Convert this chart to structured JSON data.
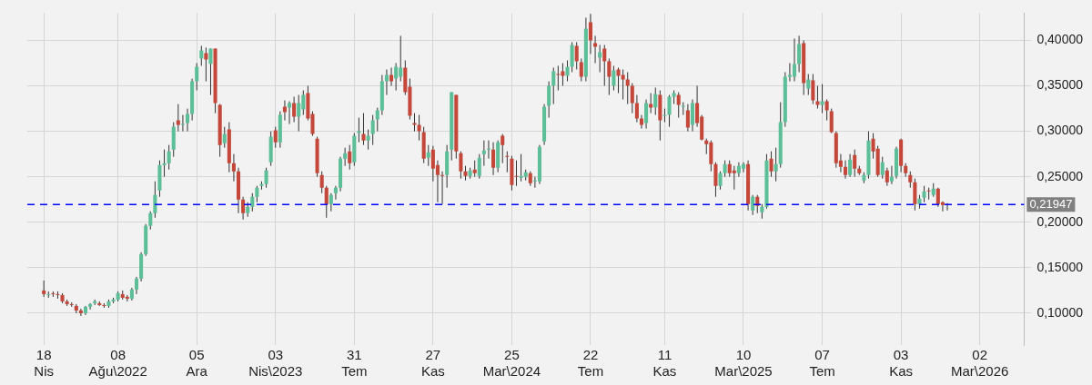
{
  "chart_data": {
    "type": "candlestick",
    "grid": true,
    "xlim": [
      "2022-03-24",
      "2026-05-08"
    ],
    "ylim": [
      0.065,
      0.43
    ],
    "xticks": [
      {
        "value": "2022-04-18",
        "label": "18\nNis"
      },
      {
        "value": "2022-08-08",
        "label": "08\nAğu\\2022"
      },
      {
        "value": "2022-12-05",
        "label": "05\nAra"
      },
      {
        "value": "2023-04-03",
        "label": "03\nNis\\2023"
      },
      {
        "value": "2023-07-31",
        "label": "31\nTem"
      },
      {
        "value": "2023-11-27",
        "label": "27\nKas"
      },
      {
        "value": "2024-03-25",
        "label": "25\nMar\\2024"
      },
      {
        "value": "2024-07-22",
        "label": "22\nTem"
      },
      {
        "value": "2024-11-11",
        "label": "11\nKas"
      },
      {
        "value": "2025-03-10",
        "label": "10\nMar\\2025"
      },
      {
        "value": "2025-07-07",
        "label": "07\nTem"
      },
      {
        "value": "2025-11-03",
        "label": "03\nKas"
      },
      {
        "value": "2026-03-02",
        "label": "02\nMar\\2026"
      }
    ],
    "yticks": [
      {
        "value": 0.1,
        "label": "0,10000"
      },
      {
        "value": 0.15,
        "label": "0,15000"
      },
      {
        "value": 0.2,
        "label": "0,20000"
      },
      {
        "value": 0.25,
        "label": "0,25000"
      },
      {
        "value": 0.3,
        "label": "0,30000"
      },
      {
        "value": 0.35,
        "label": "0,35000"
      },
      {
        "value": 0.4,
        "label": "0,40000"
      }
    ],
    "ref_lines": [
      {
        "axis": "y",
        "value": 0.21947,
        "label": "0,21947",
        "color": "#0000ff",
        "line_style": "dashed"
      }
    ],
    "x": [
      "2022-04-18",
      "2022-04-25",
      "2022-05-02",
      "2022-05-09",
      "2022-05-16",
      "2022-05-23",
      "2022-05-30",
      "2022-06-06",
      "2022-06-13",
      "2022-06-20",
      "2022-06-27",
      "2022-07-04",
      "2022-07-11",
      "2022-07-18",
      "2022-07-25",
      "2022-08-01",
      "2022-08-08",
      "2022-08-15",
      "2022-08-22",
      "2022-08-29",
      "2022-09-05",
      "2022-09-12",
      "2022-09-19",
      "2022-09-26",
      "2022-10-03",
      "2022-10-10",
      "2022-10-17",
      "2022-10-24",
      "2022-10-31",
      "2022-11-07",
      "2022-11-14",
      "2022-11-21",
      "2022-11-28",
      "2022-12-05",
      "2022-12-12",
      "2022-12-19",
      "2022-12-26",
      "2023-01-02",
      "2023-01-09",
      "2023-01-16",
      "2023-01-23",
      "2023-01-30",
      "2023-02-06",
      "2023-02-13",
      "2023-02-20",
      "2023-02-27",
      "2023-03-06",
      "2023-03-13",
      "2023-03-20",
      "2023-03-27",
      "2023-04-03",
      "2023-04-10",
      "2023-04-17",
      "2023-04-24",
      "2023-05-01",
      "2023-05-08",
      "2023-05-15",
      "2023-05-22",
      "2023-05-29",
      "2023-06-05",
      "2023-06-12",
      "2023-06-19",
      "2023-06-26",
      "2023-07-03",
      "2023-07-10",
      "2023-07-17",
      "2023-07-24",
      "2023-07-31",
      "2023-08-07",
      "2023-08-14",
      "2023-08-21",
      "2023-08-28",
      "2023-09-04",
      "2023-09-11",
      "2023-09-18",
      "2023-09-25",
      "2023-10-02",
      "2023-10-09",
      "2023-10-16",
      "2023-10-23",
      "2023-10-30",
      "2023-11-06",
      "2023-11-13",
      "2023-11-20",
      "2023-11-27",
      "2023-12-04",
      "2023-12-11",
      "2023-12-18",
      "2023-12-25",
      "2024-01-01",
      "2024-01-08",
      "2024-01-15",
      "2024-01-22",
      "2024-01-29",
      "2024-02-05",
      "2024-02-12",
      "2024-02-19",
      "2024-02-26",
      "2024-03-04",
      "2024-03-11",
      "2024-03-18",
      "2024-03-25",
      "2024-04-01",
      "2024-04-08",
      "2024-04-15",
      "2024-04-22",
      "2024-04-29",
      "2024-05-06",
      "2024-05-13",
      "2024-05-20",
      "2024-05-27",
      "2024-06-03",
      "2024-06-10",
      "2024-06-17",
      "2024-06-24",
      "2024-07-01",
      "2024-07-08",
      "2024-07-15",
      "2024-07-22",
      "2024-07-29",
      "2024-08-05",
      "2024-08-12",
      "2024-08-19",
      "2024-08-26",
      "2024-09-02",
      "2024-09-09",
      "2024-09-16",
      "2024-09-23",
      "2024-09-30",
      "2024-10-07",
      "2024-10-14",
      "2024-10-21",
      "2024-10-28",
      "2024-11-04",
      "2024-11-11",
      "2024-11-18",
      "2024-11-25",
      "2024-12-02",
      "2024-12-09",
      "2024-12-16",
      "2024-12-23",
      "2024-12-30",
      "2025-01-06",
      "2025-01-13",
      "2025-01-20",
      "2025-01-27",
      "2025-02-03",
      "2025-02-10",
      "2025-02-17",
      "2025-02-24",
      "2025-03-03",
      "2025-03-10",
      "2025-03-17",
      "2025-03-24",
      "2025-03-31",
      "2025-04-07",
      "2025-04-14",
      "2025-04-21",
      "2025-04-28",
      "2025-05-05",
      "2025-05-12",
      "2025-05-19",
      "2025-05-26",
      "2025-06-02",
      "2025-06-09",
      "2025-06-16",
      "2025-06-23",
      "2025-06-30",
      "2025-07-07",
      "2025-07-14",
      "2025-07-21",
      "2025-07-28",
      "2025-08-04",
      "2025-08-11",
      "2025-08-18",
      "2025-08-25",
      "2025-09-01",
      "2025-09-08",
      "2025-09-15",
      "2025-09-22",
      "2025-09-29",
      "2025-10-06",
      "2025-10-13",
      "2025-10-20",
      "2025-10-27",
      "2025-11-03",
      "2025-11-10",
      "2025-11-17",
      "2025-11-24",
      "2025-12-01",
      "2025-12-08",
      "2025-12-15",
      "2025-12-22",
      "2025-12-29",
      "2026-01-05",
      "2026-01-12"
    ],
    "ohlc": [
      [
        0.125,
        0.136,
        0.118,
        0.121
      ],
      [
        0.121,
        0.124,
        0.117,
        0.121
      ],
      [
        0.122,
        0.124,
        0.118,
        0.121
      ],
      [
        0.121,
        0.124,
        0.116,
        0.12
      ],
      [
        0.12,
        0.122,
        0.111,
        0.113
      ],
      [
        0.113,
        0.115,
        0.108,
        0.11
      ],
      [
        0.11,
        0.112,
        0.107,
        0.109
      ],
      [
        0.108,
        0.11,
        0.1,
        0.103
      ],
      [
        0.103,
        0.105,
        0.097,
        0.1
      ],
      [
        0.1,
        0.108,
        0.098,
        0.107
      ],
      [
        0.107,
        0.111,
        0.104,
        0.11
      ],
      [
        0.111,
        0.115,
        0.109,
        0.113
      ],
      [
        0.111,
        0.113,
        0.108,
        0.109
      ],
      [
        0.109,
        0.111,
        0.106,
        0.108
      ],
      [
        0.108,
        0.115,
        0.106,
        0.113
      ],
      [
        0.113,
        0.117,
        0.111,
        0.115
      ],
      [
        0.115,
        0.124,
        0.113,
        0.122
      ],
      [
        0.121,
        0.125,
        0.115,
        0.117
      ],
      [
        0.118,
        0.12,
        0.113,
        0.116
      ],
      [
        0.116,
        0.128,
        0.114,
        0.126
      ],
      [
        0.126,
        0.14,
        0.121,
        0.138
      ],
      [
        0.138,
        0.167,
        0.135,
        0.165
      ],
      [
        0.165,
        0.198,
        0.163,
        0.196
      ],
      [
        0.196,
        0.212,
        0.192,
        0.21
      ],
      [
        0.21,
        0.245,
        0.205,
        0.23
      ],
      [
        0.235,
        0.268,
        0.228,
        0.263
      ],
      [
        0.263,
        0.28,
        0.25,
        0.265
      ],
      [
        0.265,
        0.285,
        0.258,
        0.278
      ],
      [
        0.28,
        0.31,
        0.272,
        0.305
      ],
      [
        0.312,
        0.33,
        0.3,
        0.307
      ],
      [
        0.308,
        0.318,
        0.3,
        0.308
      ],
      [
        0.309,
        0.325,
        0.3,
        0.319
      ],
      [
        0.319,
        0.358,
        0.312,
        0.355
      ],
      [
        0.355,
        0.375,
        0.345,
        0.371
      ],
      [
        0.38,
        0.394,
        0.372,
        0.389
      ],
      [
        0.386,
        0.392,
        0.355,
        0.379
      ],
      [
        0.374,
        0.391,
        0.34,
        0.391
      ],
      [
        0.391,
        0.391,
        0.32,
        0.331
      ],
      [
        0.329,
        0.33,
        0.272,
        0.285
      ],
      [
        0.287,
        0.305,
        0.282,
        0.297
      ],
      [
        0.302,
        0.31,
        0.255,
        0.265
      ],
      [
        0.265,
        0.275,
        0.245,
        0.256
      ],
      [
        0.256,
        0.26,
        0.21,
        0.225
      ],
      [
        0.225,
        0.228,
        0.203,
        0.21
      ],
      [
        0.21,
        0.222,
        0.206,
        0.217
      ],
      [
        0.217,
        0.232,
        0.212,
        0.228
      ],
      [
        0.228,
        0.24,
        0.222,
        0.238
      ],
      [
        0.24,
        0.245,
        0.236,
        0.242
      ],
      [
        0.242,
        0.26,
        0.238,
        0.257
      ],
      [
        0.266,
        0.3,
        0.262,
        0.294
      ],
      [
        0.301,
        0.305,
        0.282,
        0.288
      ],
      [
        0.288,
        0.322,
        0.282,
        0.318
      ],
      [
        0.327,
        0.334,
        0.312,
        0.321
      ],
      [
        0.326,
        0.333,
        0.308,
        0.331
      ],
      [
        0.331,
        0.338,
        0.31,
        0.316
      ],
      [
        0.316,
        0.34,
        0.3,
        0.331
      ],
      [
        0.324,
        0.345,
        0.318,
        0.34
      ],
      [
        0.342,
        0.35,
        0.312,
        0.314
      ],
      [
        0.319,
        0.322,
        0.295,
        0.297
      ],
      [
        0.292,
        0.294,
        0.25,
        0.254
      ],
      [
        0.252,
        0.256,
        0.232,
        0.238
      ],
      [
        0.238,
        0.24,
        0.205,
        0.22
      ],
      [
        0.22,
        0.232,
        0.212,
        0.23
      ],
      [
        0.232,
        0.24,
        0.225,
        0.238
      ],
      [
        0.238,
        0.272,
        0.234,
        0.27
      ],
      [
        0.27,
        0.282,
        0.262,
        0.276
      ],
      [
        0.278,
        0.285,
        0.258,
        0.265
      ],
      [
        0.266,
        0.298,
        0.262,
        0.295
      ],
      [
        0.298,
        0.315,
        0.288,
        0.3
      ],
      [
        0.297,
        0.32,
        0.285,
        0.29
      ],
      [
        0.29,
        0.302,
        0.28,
        0.295
      ],
      [
        0.297,
        0.318,
        0.285,
        0.312
      ],
      [
        0.313,
        0.326,
        0.3,
        0.323
      ],
      [
        0.323,
        0.362,
        0.318,
        0.355
      ],
      [
        0.355,
        0.368,
        0.34,
        0.362
      ],
      [
        0.362,
        0.37,
        0.35,
        0.355
      ],
      [
        0.358,
        0.375,
        0.345,
        0.371
      ],
      [
        0.36,
        0.405,
        0.355,
        0.37
      ],
      [
        0.37,
        0.378,
        0.34,
        0.343
      ],
      [
        0.349,
        0.358,
        0.313,
        0.317
      ],
      [
        0.309,
        0.32,
        0.3,
        0.307
      ],
      [
        0.307,
        0.318,
        0.29,
        0.3
      ],
      [
        0.299,
        0.305,
        0.265,
        0.27
      ],
      [
        0.271,
        0.285,
        0.262,
        0.277
      ],
      [
        0.28,
        0.284,
        0.245,
        0.259
      ],
      [
        0.263,
        0.268,
        0.222,
        0.252
      ],
      [
        0.252,
        0.256,
        0.22,
        0.251
      ],
      [
        0.252,
        0.285,
        0.238,
        0.278
      ],
      [
        0.28,
        0.343,
        0.268,
        0.343
      ],
      [
        0.34,
        0.34,
        0.27,
        0.278
      ],
      [
        0.276,
        0.278,
        0.248,
        0.256
      ],
      [
        0.256,
        0.262,
        0.246,
        0.251
      ],
      [
        0.251,
        0.26,
        0.248,
        0.257
      ],
      [
        0.258,
        0.268,
        0.25,
        0.254
      ],
      [
        0.251,
        0.275,
        0.248,
        0.271
      ],
      [
        0.275,
        0.29,
        0.262,
        0.279
      ],
      [
        0.28,
        0.29,
        0.27,
        0.281
      ],
      [
        0.28,
        0.288,
        0.252,
        0.26
      ],
      [
        0.26,
        0.29,
        0.255,
        0.288
      ],
      [
        0.295,
        0.297,
        0.265,
        0.285
      ],
      [
        0.273,
        0.278,
        0.255,
        0.272
      ],
      [
        0.27,
        0.273,
        0.235,
        0.241
      ],
      [
        0.251,
        0.268,
        0.24,
        0.25
      ],
      [
        0.249,
        0.275,
        0.245,
        0.251
      ],
      [
        0.25,
        0.258,
        0.246,
        0.255
      ],
      [
        0.254,
        0.256,
        0.24,
        0.243
      ],
      [
        0.246,
        0.25,
        0.238,
        0.246
      ],
      [
        0.245,
        0.285,
        0.242,
        0.283
      ],
      [
        0.289,
        0.33,
        0.285,
        0.327
      ],
      [
        0.328,
        0.355,
        0.315,
        0.35
      ],
      [
        0.35,
        0.37,
        0.33,
        0.366
      ],
      [
        0.363,
        0.372,
        0.345,
        0.362
      ],
      [
        0.366,
        0.375,
        0.35,
        0.361
      ],
      [
        0.361,
        0.378,
        0.355,
        0.371
      ],
      [
        0.371,
        0.398,
        0.365,
        0.395
      ],
      [
        0.394,
        0.398,
        0.368,
        0.377
      ],
      [
        0.376,
        0.38,
        0.355,
        0.36
      ],
      [
        0.36,
        0.425,
        0.355,
        0.413
      ],
      [
        0.42,
        0.429,
        0.385,
        0.4
      ],
      [
        0.397,
        0.405,
        0.375,
        0.393
      ],
      [
        0.381,
        0.395,
        0.365,
        0.387
      ],
      [
        0.391,
        0.395,
        0.35,
        0.377
      ],
      [
        0.377,
        0.38,
        0.34,
        0.36
      ],
      [
        0.35,
        0.372,
        0.345,
        0.367
      ],
      [
        0.368,
        0.37,
        0.342,
        0.361
      ],
      [
        0.362,
        0.368,
        0.335,
        0.357
      ],
      [
        0.357,
        0.365,
        0.33,
        0.35
      ],
      [
        0.35,
        0.353,
        0.32,
        0.331
      ],
      [
        0.331,
        0.34,
        0.31,
        0.314
      ],
      [
        0.314,
        0.318,
        0.303,
        0.307
      ],
      [
        0.309,
        0.335,
        0.303,
        0.331
      ],
      [
        0.33,
        0.342,
        0.32,
        0.326
      ],
      [
        0.326,
        0.348,
        0.318,
        0.341
      ],
      [
        0.34,
        0.345,
        0.29,
        0.312
      ],
      [
        0.318,
        0.325,
        0.31,
        0.318
      ],
      [
        0.318,
        0.34,
        0.305,
        0.338
      ],
      [
        0.338,
        0.345,
        0.33,
        0.342
      ],
      [
        0.34,
        0.343,
        0.315,
        0.329
      ],
      [
        0.328,
        0.332,
        0.318,
        0.328
      ],
      [
        0.323,
        0.33,
        0.3,
        0.304
      ],
      [
        0.307,
        0.335,
        0.3,
        0.331
      ],
      [
        0.331,
        0.35,
        0.305,
        0.309
      ],
      [
        0.316,
        0.318,
        0.29,
        0.291
      ],
      [
        0.29,
        0.292,
        0.275,
        0.286
      ],
      [
        0.288,
        0.29,
        0.256,
        0.264
      ],
      [
        0.264,
        0.266,
        0.228,
        0.24
      ],
      [
        0.24,
        0.256,
        0.236,
        0.254
      ],
      [
        0.254,
        0.268,
        0.25,
        0.264
      ],
      [
        0.264,
        0.268,
        0.25,
        0.254
      ],
      [
        0.257,
        0.262,
        0.236,
        0.254
      ],
      [
        0.254,
        0.266,
        0.25,
        0.262
      ],
      [
        0.259,
        0.266,
        0.255,
        0.264
      ],
      [
        0.264,
        0.268,
        0.213,
        0.22
      ],
      [
        0.213,
        0.23,
        0.208,
        0.228
      ],
      [
        0.228,
        0.23,
        0.21,
        0.218
      ],
      [
        0.211,
        0.22,
        0.204,
        0.217
      ],
      [
        0.217,
        0.275,
        0.215,
        0.268
      ],
      [
        0.27,
        0.278,
        0.25,
        0.256
      ],
      [
        0.256,
        0.282,
        0.245,
        0.264
      ],
      [
        0.264,
        0.332,
        0.26,
        0.31
      ],
      [
        0.31,
        0.365,
        0.305,
        0.36
      ],
      [
        0.36,
        0.375,
        0.355,
        0.362
      ],
      [
        0.36,
        0.402,
        0.355,
        0.374
      ],
      [
        0.374,
        0.405,
        0.365,
        0.396
      ],
      [
        0.397,
        0.4,
        0.34,
        0.353
      ],
      [
        0.347,
        0.363,
        0.34,
        0.357
      ],
      [
        0.356,
        0.363,
        0.33,
        0.334
      ],
      [
        0.333,
        0.35,
        0.325,
        0.329
      ],
      [
        0.329,
        0.352,
        0.32,
        0.333
      ],
      [
        0.333,
        0.335,
        0.312,
        0.323
      ],
      [
        0.322,
        0.325,
        0.298,
        0.299
      ],
      [
        0.298,
        0.3,
        0.26,
        0.265
      ],
      [
        0.268,
        0.275,
        0.255,
        0.261
      ],
      [
        0.261,
        0.268,
        0.248,
        0.252
      ],
      [
        0.252,
        0.275,
        0.25,
        0.269
      ],
      [
        0.274,
        0.28,
        0.25,
        0.259
      ],
      [
        0.259,
        0.262,
        0.252,
        0.254
      ],
      [
        0.246,
        0.255,
        0.243,
        0.252
      ],
      [
        0.252,
        0.3,
        0.248,
        0.29
      ],
      [
        0.292,
        0.298,
        0.27,
        0.278
      ],
      [
        0.281,
        0.284,
        0.25,
        0.252
      ],
      [
        0.252,
        0.272,
        0.248,
        0.266
      ],
      [
        0.257,
        0.26,
        0.24,
        0.244
      ],
      [
        0.245,
        0.262,
        0.242,
        0.25
      ],
      [
        0.251,
        0.283,
        0.248,
        0.281
      ],
      [
        0.291,
        0.292,
        0.255,
        0.262
      ],
      [
        0.262,
        0.265,
        0.25,
        0.254
      ],
      [
        0.252,
        0.256,
        0.238,
        0.244
      ],
      [
        0.244,
        0.248,
        0.213,
        0.22
      ],
      [
        0.22,
        0.23,
        0.215,
        0.226
      ],
      [
        0.227,
        0.24,
        0.222,
        0.234
      ],
      [
        0.235,
        0.238,
        0.225,
        0.234
      ],
      [
        0.23,
        0.243,
        0.228,
        0.237
      ],
      [
        0.237,
        0.238,
        0.217,
        0.22
      ],
      [
        0.222,
        0.223,
        0.212,
        0.219
      ],
      [
        0.22,
        0.221,
        0.213,
        0.219
      ]
    ]
  }
}
